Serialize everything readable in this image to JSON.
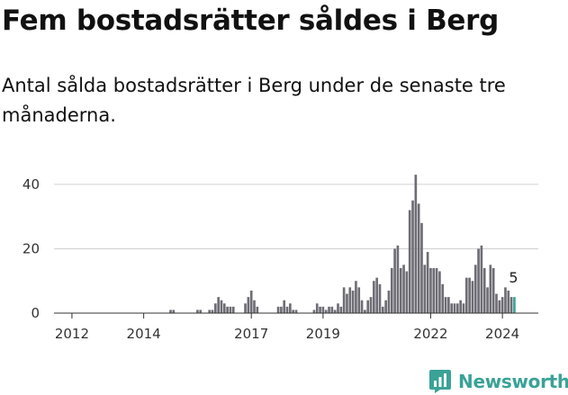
{
  "header": {
    "title": "Fem bostadsrätter såldes i Berg",
    "subtitle": "Antal sålda bostadsrätter i Berg under de senaste tre månaderna."
  },
  "brand": {
    "name": "Newsworthy",
    "icon": "newsworthy-logo-icon",
    "color": "#3aa297"
  },
  "colors": {
    "bar": "#6e6d75",
    "highlight": "#3aa297",
    "grid": "#d0d0d0",
    "axis": "#333333"
  },
  "chart_data": {
    "type": "bar",
    "title": "Fem bostadsrätter såldes i Berg",
    "subtitle": "Antal sålda bostadsrätter i Berg under de senaste tre månaderna.",
    "xlabel": "",
    "ylabel": "",
    "ylim": [
      0,
      45
    ],
    "yticks": [
      0,
      20,
      40
    ],
    "xlim": [
      "2011-07",
      "2025-01"
    ],
    "xticks": [
      "2012",
      "2014",
      "2017",
      "2019",
      "2022",
      "2024"
    ],
    "grid": "horizontal",
    "legend": "none",
    "highlight_label": "5",
    "points": [
      {
        "x": "2014-10",
        "y": 1
      },
      {
        "x": "2014-11",
        "y": 1
      },
      {
        "x": "2015-07",
        "y": 1
      },
      {
        "x": "2015-08",
        "y": 1
      },
      {
        "x": "2015-11",
        "y": 1
      },
      {
        "x": "2015-12",
        "y": 1
      },
      {
        "x": "2016-01",
        "y": 3
      },
      {
        "x": "2016-02",
        "y": 5
      },
      {
        "x": "2016-03",
        "y": 4
      },
      {
        "x": "2016-04",
        "y": 3
      },
      {
        "x": "2016-05",
        "y": 2
      },
      {
        "x": "2016-06",
        "y": 2
      },
      {
        "x": "2016-07",
        "y": 2
      },
      {
        "x": "2016-11",
        "y": 3
      },
      {
        "x": "2016-12",
        "y": 5
      },
      {
        "x": "2017-01",
        "y": 7
      },
      {
        "x": "2017-02",
        "y": 4
      },
      {
        "x": "2017-03",
        "y": 2
      },
      {
        "x": "2017-10",
        "y": 2
      },
      {
        "x": "2017-11",
        "y": 2
      },
      {
        "x": "2017-12",
        "y": 4
      },
      {
        "x": "2018-01",
        "y": 2
      },
      {
        "x": "2018-02",
        "y": 3
      },
      {
        "x": "2018-03",
        "y": 1
      },
      {
        "x": "2018-04",
        "y": 1
      },
      {
        "x": "2018-10",
        "y": 1
      },
      {
        "x": "2018-11",
        "y": 3
      },
      {
        "x": "2018-12",
        "y": 2
      },
      {
        "x": "2019-01",
        "y": 2
      },
      {
        "x": "2019-02",
        "y": 1
      },
      {
        "x": "2019-03",
        "y": 2
      },
      {
        "x": "2019-04",
        "y": 2
      },
      {
        "x": "2019-05",
        "y": 1
      },
      {
        "x": "2019-06",
        "y": 3
      },
      {
        "x": "2019-07",
        "y": 2
      },
      {
        "x": "2019-08",
        "y": 8
      },
      {
        "x": "2019-09",
        "y": 6
      },
      {
        "x": "2019-10",
        "y": 8
      },
      {
        "x": "2019-11",
        "y": 7
      },
      {
        "x": "2019-12",
        "y": 10
      },
      {
        "x": "2020-01",
        "y": 8
      },
      {
        "x": "2020-02",
        "y": 4
      },
      {
        "x": "2020-03",
        "y": 1
      },
      {
        "x": "2020-04",
        "y": 4
      },
      {
        "x": "2020-05",
        "y": 5
      },
      {
        "x": "2020-06",
        "y": 10
      },
      {
        "x": "2020-07",
        "y": 11
      },
      {
        "x": "2020-08",
        "y": 9
      },
      {
        "x": "2020-09",
        "y": 2
      },
      {
        "x": "2020-10",
        "y": 4
      },
      {
        "x": "2020-11",
        "y": 7
      },
      {
        "x": "2020-12",
        "y": 14
      },
      {
        "x": "2021-01",
        "y": 20
      },
      {
        "x": "2021-02",
        "y": 21
      },
      {
        "x": "2021-03",
        "y": 14
      },
      {
        "x": "2021-04",
        "y": 15
      },
      {
        "x": "2021-05",
        "y": 13
      },
      {
        "x": "2021-06",
        "y": 32
      },
      {
        "x": "2021-07",
        "y": 35
      },
      {
        "x": "2021-08",
        "y": 43
      },
      {
        "x": "2021-09",
        "y": 34
      },
      {
        "x": "2021-10",
        "y": 28
      },
      {
        "x": "2021-11",
        "y": 15
      },
      {
        "x": "2021-12",
        "y": 19
      },
      {
        "x": "2022-01",
        "y": 14
      },
      {
        "x": "2022-02",
        "y": 14
      },
      {
        "x": "2022-03",
        "y": 14
      },
      {
        "x": "2022-04",
        "y": 13
      },
      {
        "x": "2022-05",
        "y": 9
      },
      {
        "x": "2022-06",
        "y": 5
      },
      {
        "x": "2022-07",
        "y": 5
      },
      {
        "x": "2022-08",
        "y": 3
      },
      {
        "x": "2022-09",
        "y": 3
      },
      {
        "x": "2022-10",
        "y": 3
      },
      {
        "x": "2022-11",
        "y": 4
      },
      {
        "x": "2022-12",
        "y": 3
      },
      {
        "x": "2023-01",
        "y": 11
      },
      {
        "x": "2023-02",
        "y": 11
      },
      {
        "x": "2023-03",
        "y": 10
      },
      {
        "x": "2023-04",
        "y": 15
      },
      {
        "x": "2023-05",
        "y": 20
      },
      {
        "x": "2023-06",
        "y": 21
      },
      {
        "x": "2023-07",
        "y": 14
      },
      {
        "x": "2023-08",
        "y": 8
      },
      {
        "x": "2023-09",
        "y": 15
      },
      {
        "x": "2023-10",
        "y": 14
      },
      {
        "x": "2023-11",
        "y": 6
      },
      {
        "x": "2023-12",
        "y": 4
      },
      {
        "x": "2024-01",
        "y": 5
      },
      {
        "x": "2024-02",
        "y": 8
      },
      {
        "x": "2024-03",
        "y": 7
      },
      {
        "x": "2024-04",
        "y": 5
      },
      {
        "x": "2024-05",
        "y": 5,
        "highlight": true
      }
    ]
  }
}
